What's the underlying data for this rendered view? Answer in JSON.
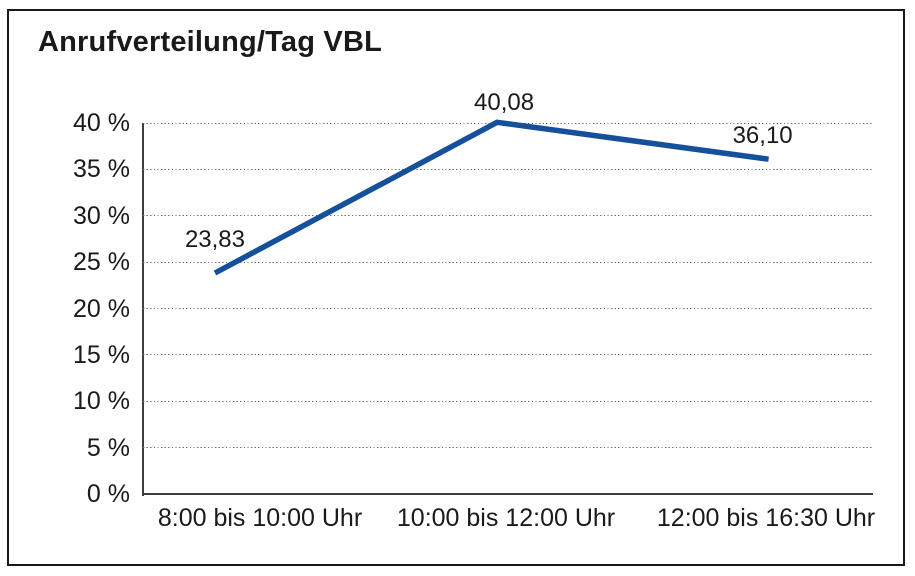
{
  "title": "Anrufverteilung/Tag VBL",
  "colors": {
    "line": "#15509b",
    "text": "#1a1a1a",
    "grid": "#6e6e6e",
    "axis": "#3f3f3f",
    "border": "#1a1a1a",
    "background": "#ffffff"
  },
  "chart_data": {
    "type": "line",
    "title": "Anrufverteilung/Tag VBL",
    "categories": [
      "8:00 bis 10:00 Uhr",
      "10:00 bis 12:00 Uhr",
      "12:00 bis 16:30 Uhr"
    ],
    "values": [
      23.83,
      40.08,
      36.1
    ],
    "value_labels": [
      "23,83",
      "40,08",
      "36,10"
    ],
    "series_name": "Anrufverteilung/Tag VBL",
    "xlabel": "",
    "ylabel": "",
    "ylim": [
      0,
      40
    ],
    "ytick_step": 5,
    "ytick_labels": [
      "0 %",
      "5 %",
      "10 %",
      "15 %",
      "20 %",
      "25 %",
      "30 %",
      "35 %",
      "40 %"
    ],
    "grid": "horizontal-dotted",
    "legend": "none",
    "line_color": "#15509b"
  }
}
